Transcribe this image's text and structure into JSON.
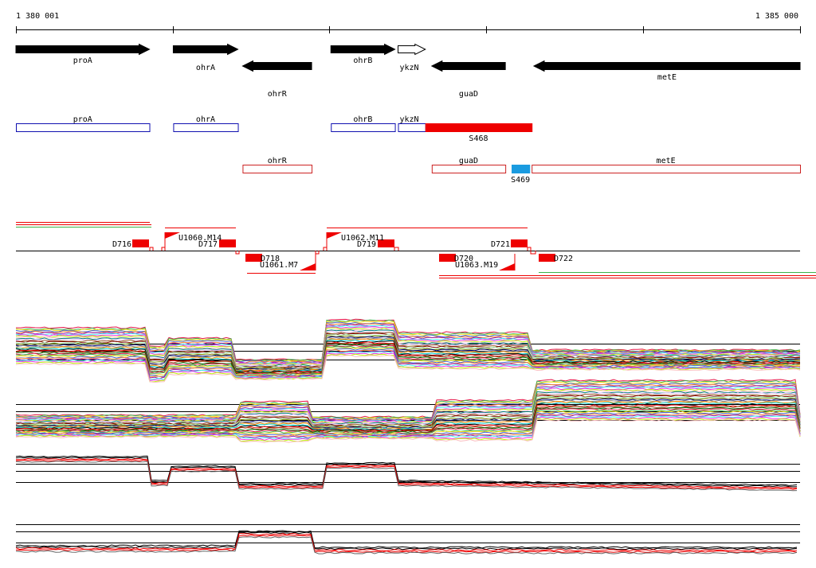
{
  "ruler": {
    "start_label": "1 380 001",
    "end_label": "1 385 000",
    "start_bp": 1380001,
    "end_bp": 1385000
  },
  "genes": [
    {
      "name": "proA",
      "strand": "+",
      "row": 1,
      "fill": "#000000",
      "start_bp": 1380001,
      "end_bp": 1380852
    },
    {
      "name": "ohrA",
      "strand": "+",
      "row": 1,
      "fill": "#000000",
      "start_bp": 1381004,
      "end_bp": 1381416
    },
    {
      "name": "ohrR",
      "strand": "-",
      "row": 2,
      "fill": "#000000",
      "start_bp": 1381446,
      "end_bp": 1381886
    },
    {
      "name": "ohrB",
      "strand": "+",
      "row": 1,
      "fill": "#000000",
      "start_bp": 1382009,
      "end_bp": 1382417
    },
    {
      "name": "ykzN",
      "strand": "+",
      "row": 1,
      "fill": "#ffffff",
      "start_bp": 1382437,
      "end_bp": 1382611
    },
    {
      "name": "guaD",
      "strand": "-",
      "row": 2,
      "fill": "#000000",
      "start_bp": 1382652,
      "end_bp": 1383121
    },
    {
      "name": "metE",
      "strand": "-",
      "row": 2,
      "fill": "#000000",
      "start_bp": 1383303,
      "end_bp": 1385000
    }
  ],
  "transcripts_plus": [
    {
      "name": "proA",
      "color": "#1010b0",
      "fill": "#ffffff",
      "start_bp": 1380001,
      "end_bp": 1380852,
      "label": "proA"
    },
    {
      "name": "ohrA",
      "color": "#1010b0",
      "fill": "#ffffff",
      "start_bp": 1381004,
      "end_bp": 1381416,
      "label": "ohrA"
    },
    {
      "name": "ohrB",
      "color": "#1010b0",
      "fill": "#ffffff",
      "start_bp": 1382009,
      "end_bp": 1382417,
      "label": "ohrB"
    },
    {
      "name": "ykzN",
      "color": "#1010b0",
      "fill": "#ffffff",
      "start_bp": 1382437,
      "end_bp": 1382611,
      "label": "ykzN"
    },
    {
      "name": "S468",
      "color": "#ee0000",
      "fill": "#ee0000",
      "start_bp": 1382611,
      "end_bp": 1383289,
      "label": "S468"
    }
  ],
  "transcripts_minus": [
    {
      "name": "ohrR",
      "color": "#cc2222",
      "fill": "#ffffff",
      "start_bp": 1381446,
      "end_bp": 1381886,
      "label": "ohrR"
    },
    {
      "name": "guaD",
      "color": "#cc2222",
      "fill": "#ffffff",
      "start_bp": 1382652,
      "end_bp": 1383121,
      "label": "guaD"
    },
    {
      "name": "S469",
      "color": "#1a9be0",
      "fill": "#1a9be0",
      "start_bp": 1383161,
      "end_bp": 1383274,
      "label": "S469"
    },
    {
      "name": "metE",
      "color": "#cc2222",
      "fill": "#ffffff",
      "start_bp": 1383289,
      "end_bp": 1385000,
      "label": "metE"
    }
  ],
  "features": {
    "d_blocks": [
      {
        "name": "D716",
        "label": "D716",
        "strand": "+"
      },
      {
        "name": "D717",
        "label": "D717",
        "strand": "+"
      },
      {
        "name": "D718",
        "label": "D718",
        "strand": "-"
      },
      {
        "name": "D719",
        "label": "D719",
        "strand": "+"
      },
      {
        "name": "D720",
        "label": "D720",
        "strand": "-"
      },
      {
        "name": "D721",
        "label": "D721",
        "strand": "+"
      },
      {
        "name": "D722",
        "label": "D722",
        "strand": "-"
      }
    ],
    "u_markers": [
      {
        "name": "U1060.M14",
        "label": "U1060.M14",
        "strand": "+"
      },
      {
        "name": "U1061.M7",
        "label": "U1061.M7",
        "strand": "-"
      },
      {
        "name": "U1062.M11",
        "label": "U1062.M11",
        "strand": "+"
      },
      {
        "name": "U1063.M19",
        "label": "U1063.M19",
        "strand": "-"
      }
    ]
  },
  "palette": {
    "red": "#ee0000",
    "blue": "#1010b0",
    "sky": "#1a9be0",
    "multi": [
      "#e6194b",
      "#3cb44b",
      "#ffe119",
      "#4363d8",
      "#f58231",
      "#911eb4",
      "#46f0f0",
      "#f032e6",
      "#bcf60c",
      "#fabebe",
      "#008080",
      "#e6beff",
      "#9a6324",
      "#800000",
      "#aaffc3",
      "#808000",
      "#000075",
      "#808080",
      "#ff8c00",
      "#00ced1"
    ]
  }
}
